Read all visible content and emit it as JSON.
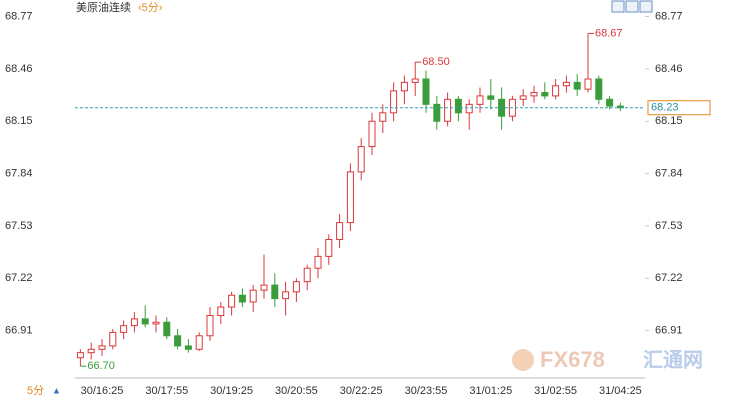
{
  "chart_data": {
    "type": "candlestick",
    "title": "美原油连续",
    "period": "‹5分›",
    "period_button": "5分",
    "period_arrow": "▲",
    "watermark": {
      "brand": "FX678",
      "name": "汇通网"
    },
    "categories": [
      null,
      null,
      "30/16:25",
      null,
      null,
      null,
      null,
      null,
      "30/17:55",
      null,
      null,
      null,
      null,
      null,
      "30/19:25",
      null,
      null,
      null,
      null,
      null,
      "30/20:55",
      null,
      null,
      null,
      null,
      null,
      "30/22:25",
      null,
      null,
      null,
      null,
      null,
      "30/23:55",
      null,
      null,
      null,
      null,
      null,
      "31/01:25",
      null,
      null,
      null,
      null,
      null,
      "31/02:55",
      null,
      null,
      null,
      null,
      null,
      "31/04:25"
    ],
    "ohlc": [
      [
        66.75,
        66.8,
        66.7,
        66.78
      ],
      [
        66.78,
        66.84,
        66.74,
        66.8
      ],
      [
        66.8,
        66.86,
        66.76,
        66.82
      ],
      [
        66.82,
        66.92,
        66.8,
        66.9
      ],
      [
        66.9,
        66.97,
        66.86,
        66.94
      ],
      [
        66.94,
        67.02,
        66.9,
        66.98
      ],
      [
        66.98,
        67.06,
        66.93,
        66.95
      ],
      [
        66.95,
        67.0,
        66.9,
        66.96
      ],
      [
        66.96,
        66.99,
        66.86,
        66.88
      ],
      [
        66.88,
        66.92,
        66.8,
        66.82
      ],
      [
        66.82,
        66.86,
        66.78,
        66.8
      ],
      [
        66.8,
        66.9,
        66.79,
        66.88
      ],
      [
        66.88,
        67.05,
        66.85,
        67.0
      ],
      [
        67.0,
        67.08,
        66.95,
        67.05
      ],
      [
        67.05,
        67.14,
        67.0,
        67.12
      ],
      [
        67.12,
        67.16,
        67.05,
        67.08
      ],
      [
        67.08,
        67.18,
        67.02,
        67.15
      ],
      [
        67.15,
        67.36,
        67.1,
        67.18
      ],
      [
        67.18,
        67.25,
        67.05,
        67.1
      ],
      [
        67.1,
        67.2,
        67.0,
        67.14
      ],
      [
        67.14,
        67.22,
        67.08,
        67.2
      ],
      [
        67.2,
        67.3,
        67.15,
        67.28
      ],
      [
        67.28,
        67.4,
        67.22,
        67.35
      ],
      [
        67.35,
        67.48,
        67.3,
        67.45
      ],
      [
        67.45,
        67.6,
        67.4,
        67.55
      ],
      [
        67.55,
        67.9,
        67.5,
        67.85
      ],
      [
        67.85,
        68.05,
        67.8,
        68.0
      ],
      [
        68.0,
        68.2,
        67.95,
        68.15
      ],
      [
        68.15,
        68.25,
        68.08,
        68.2
      ],
      [
        68.2,
        68.38,
        68.15,
        68.33
      ],
      [
        68.33,
        68.42,
        68.25,
        68.38
      ],
      [
        68.38,
        68.5,
        68.3,
        68.4
      ],
      [
        68.4,
        68.45,
        68.2,
        68.25
      ],
      [
        68.25,
        68.3,
        68.1,
        68.15
      ],
      [
        68.15,
        68.32,
        68.12,
        68.28
      ],
      [
        68.28,
        68.3,
        68.15,
        68.2
      ],
      [
        68.2,
        68.28,
        68.1,
        68.25
      ],
      [
        68.25,
        68.35,
        68.2,
        68.3
      ],
      [
        68.3,
        68.4,
        68.22,
        68.28
      ],
      [
        68.28,
        68.35,
        68.1,
        68.18
      ],
      [
        68.18,
        68.3,
        68.15,
        68.28
      ],
      [
        68.28,
        68.34,
        68.24,
        68.3
      ],
      [
        68.3,
        68.36,
        68.26,
        68.32
      ],
      [
        68.32,
        68.38,
        68.28,
        68.3
      ],
      [
        68.3,
        68.4,
        68.28,
        68.36
      ],
      [
        68.36,
        68.42,
        68.32,
        68.38
      ],
      [
        68.38,
        68.43,
        68.3,
        68.34
      ],
      [
        68.34,
        68.67,
        68.32,
        68.4
      ],
      [
        68.4,
        68.42,
        68.25,
        68.28
      ],
      [
        68.28,
        68.3,
        68.22,
        68.24
      ],
      [
        68.24,
        68.26,
        68.21,
        68.23
      ]
    ],
    "up_color": "#d9383a",
    "down_color": "#3a9d3a",
    "annotations": [
      "68.50",
      "68.67",
      "66.70"
    ],
    "last_price": 68.23,
    "last_price_color": "#2aa3b5",
    "ylim": [
      66.63,
      68.85
    ],
    "yticks": [
      66.91,
      67.22,
      67.53,
      67.84,
      68.15,
      68.46,
      68.77
    ]
  }
}
